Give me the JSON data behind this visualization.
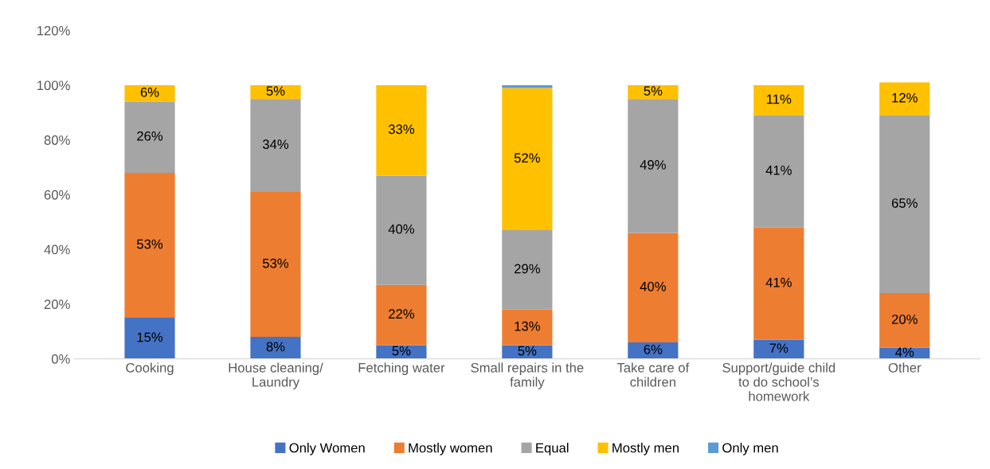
{
  "chart_data": {
    "type": "bar",
    "stacked": true,
    "categories": [
      "Cooking",
      "House cleaning/\nLaundry",
      "Fetching water",
      "Small repairs in the\nfamily",
      "Take care of\nchildren",
      "Support/guide child\nto do school’s\nhomework",
      "Other"
    ],
    "series": [
      {
        "name": "Only Women",
        "color": "#4472c4",
        "values": [
          15,
          8,
          5,
          5,
          6,
          7,
          4
        ],
        "value_labels": [
          "15%",
          "8%",
          "5%",
          "5%",
          "6%",
          "7%",
          "4%"
        ]
      },
      {
        "name": "Mostly women",
        "color": "#ed7d31",
        "values": [
          53,
          53,
          22,
          13,
          40,
          41,
          20
        ],
        "value_labels": [
          "53%",
          "53%",
          "22%",
          "13%",
          "40%",
          "41%",
          "20%"
        ]
      },
      {
        "name": "Equal",
        "color": "#a5a5a5",
        "values": [
          26,
          34,
          40,
          29,
          49,
          41,
          65
        ],
        "value_labels": [
          "26%",
          "34%",
          "40%",
          "29%",
          "49%",
          "41%",
          "65%"
        ]
      },
      {
        "name": "Mostly men",
        "color": "#ffc000",
        "values": [
          6,
          5,
          33,
          52,
          5,
          11,
          12
        ],
        "value_labels": [
          "6%",
          "5%",
          "33%",
          "52%",
          "5%",
          "11%",
          "12%"
        ]
      },
      {
        "name": "Only men",
        "color": "#5b9bd5",
        "values": [
          null,
          null,
          null,
          1,
          null,
          null,
          null
        ],
        "value_labels": [
          null,
          null,
          null,
          null,
          null,
          null,
          null
        ]
      }
    ],
    "ylim": [
      0,
      120
    ],
    "yticks": [
      {
        "value": 0,
        "label": "0%"
      },
      {
        "value": 20,
        "label": "20%"
      },
      {
        "value": 40,
        "label": "40%"
      },
      {
        "value": 60,
        "label": "60%"
      },
      {
        "value": 80,
        "label": "80%"
      },
      {
        "value": 100,
        "label": "100%"
      },
      {
        "value": 120,
        "label": "120%"
      }
    ],
    "grid": false,
    "legend": "bottom"
  }
}
